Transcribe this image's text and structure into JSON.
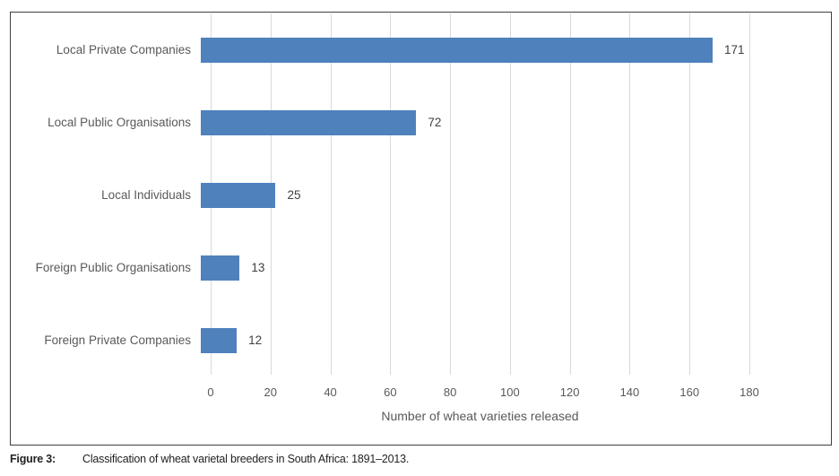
{
  "figure": {
    "caption_label": "Figure 3:",
    "caption_text": "Classification of wheat varietal breeders in South Africa: 1891–2013."
  },
  "chart_data": {
    "type": "bar",
    "orientation": "horizontal",
    "title": "",
    "categories": [
      "Local Private Companies",
      "Local Public Organisations",
      "Local Individuals",
      "Foreign Public Organisations",
      "Foreign Private Companies"
    ],
    "values": [
      171,
      72,
      25,
      13,
      12
    ],
    "value_labels": [
      "171",
      "72",
      "25",
      "13",
      "12"
    ],
    "xlabel": "Number of wheat varieties released",
    "ylabel": "",
    "xlim": [
      0,
      180
    ],
    "xticks": [
      0,
      20,
      40,
      60,
      80,
      100,
      120,
      140,
      160,
      180
    ],
    "grid": true,
    "legend": false,
    "colors": {
      "bar": "#4f81bd",
      "gridline": "#d9d9d9",
      "axis_text": "#595959",
      "value_text": "#404040",
      "chart_border": "#3f3f3f"
    }
  }
}
